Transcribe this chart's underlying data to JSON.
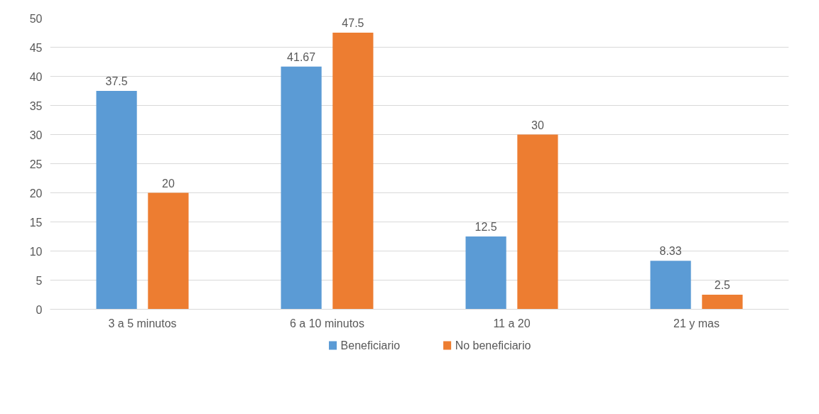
{
  "chart_data": {
    "type": "bar",
    "categories": [
      "3 a 5 minutos",
      "6 a 10 minutos",
      "11 a 20",
      "21 y mas"
    ],
    "series": [
      {
        "name": "Beneficiario",
        "color": "#5b9bd5",
        "values": [
          37.5,
          41.67,
          12.5,
          8.33
        ]
      },
      {
        "name": "No beneficiario",
        "color": "#ed7d31",
        "values": [
          20,
          47.5,
          30,
          2.5
        ]
      }
    ],
    "ylim": [
      0,
      50
    ],
    "yticks": [
      0,
      5,
      10,
      15,
      20,
      25,
      30,
      35,
      40,
      45,
      50
    ],
    "grid": "y",
    "legend": "bottom",
    "data_labels": true
  }
}
